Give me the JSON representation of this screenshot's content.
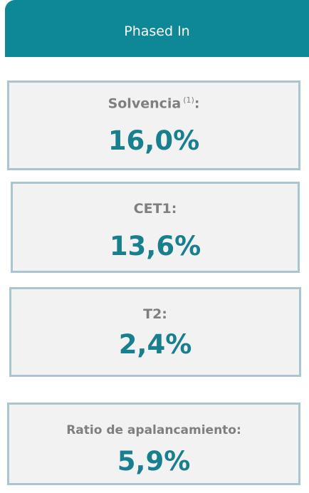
{
  "header": {
    "title": "Phased In"
  },
  "cards": [
    {
      "label": "Solvencia",
      "note": "(1)",
      "label_end": ":",
      "value": "16,0%"
    },
    {
      "label": "CET1:",
      "value": "13,6%"
    },
    {
      "label": "T2:",
      "value": "2,4%"
    },
    {
      "label": "Ratio de apalancamiento:",
      "value": "5,9%"
    }
  ]
}
